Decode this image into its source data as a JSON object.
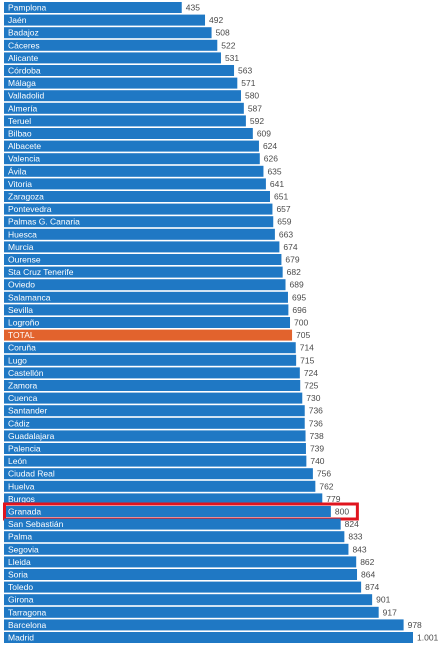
{
  "chart_data": {
    "type": "bar",
    "orientation": "horizontal",
    "bar_color": "#1f78c4",
    "total_color": "#e2632d",
    "highlight_color": "#e0141e",
    "highlight_category": "Granada",
    "total_category": "TOTAL",
    "xlim": [
      0,
      1001
    ],
    "grid": false,
    "categories": [
      "Pamplona",
      "Jaén",
      "Badajoz",
      "Cáceres",
      "Alicante",
      "Córdoba",
      "Málaga",
      "Valladolid",
      "Almería",
      "Teruel",
      "Bilbao",
      "Albacete",
      "Valencia",
      "Ávila",
      "Vitoria",
      "Zaragoza",
      "Pontevedra",
      "Palmas  G. Canaria",
      "Huesca",
      "Murcia",
      "Ourense",
      "Sta Cruz Tenerife",
      "Oviedo",
      "Salamanca",
      "Sevilla",
      "Logroño",
      "TOTAL",
      "Coruña",
      "Lugo",
      "Castellón",
      "Zamora",
      "Cuenca",
      "Santander",
      "Cádiz",
      "Guadalajara",
      "Palencia",
      "León",
      "Ciudad Real",
      "Huelva",
      "Burgos",
      "Granada",
      "San Sebastián",
      "Palma",
      "Segovia",
      "Lleida",
      "Soria",
      "Toledo",
      "Girona",
      "Tarragona",
      "Barcelona",
      "Madrid"
    ],
    "values": [
      435,
      492,
      508,
      522,
      531,
      563,
      571,
      580,
      587,
      592,
      609,
      624,
      626,
      635,
      641,
      651,
      657,
      659,
      663,
      674,
      679,
      682,
      689,
      695,
      696,
      700,
      705,
      714,
      715,
      724,
      725,
      730,
      736,
      736,
      738,
      739,
      740,
      756,
      762,
      779,
      800,
      824,
      833,
      843,
      862,
      864,
      874,
      901,
      917,
      978,
      1001
    ],
    "value_labels": [
      "435",
      "492",
      "508",
      "522",
      "531",
      "563",
      "571",
      "580",
      "587",
      "592",
      "609",
      "624",
      "626",
      "635",
      "641",
      "651",
      "657",
      "659",
      "663",
      "674",
      "679",
      "682",
      "689",
      "695",
      "696",
      "700",
      "705",
      "714",
      "715",
      "724",
      "725",
      "730",
      "736",
      "736",
      "738",
      "739",
      "740",
      "756",
      "762",
      "779",
      "800",
      "824",
      "833",
      "843",
      "862",
      "864",
      "874",
      "901",
      "917",
      "978",
      "1.001"
    ]
  }
}
